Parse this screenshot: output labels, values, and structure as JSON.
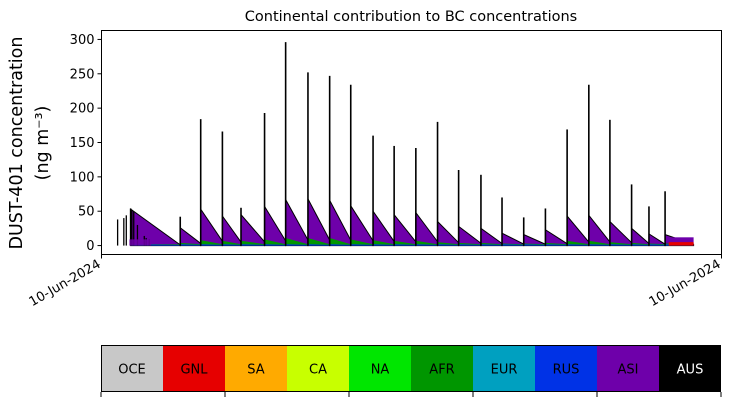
{
  "chart_data": {
    "type": "area",
    "title": "Continental contribution to BC concentrations",
    "ylabel_line1": "DUST-401 concentration",
    "ylabel_line2": "(ng m⁻³)",
    "ylim": [
      -13,
      313
    ],
    "yticks": [
      0,
      50,
      100,
      150,
      200,
      250,
      300
    ],
    "xtick_labels": [
      "10-Jun-2024",
      "10-Jun-2024"
    ],
    "grid": false,
    "stack_order": [
      "OCE",
      "GNL",
      "SA",
      "CA",
      "NA",
      "AFR",
      "EUR",
      "RUS",
      "ASI",
      "AUS"
    ],
    "categories": [
      "OCE",
      "GNL",
      "SA",
      "CA",
      "NA",
      "AFR",
      "EUR",
      "RUS",
      "ASI",
      "AUS"
    ],
    "colors": {
      "OCE": "#c8c8c8",
      "GNL": "#e60000",
      "SA": "#ffaa00",
      "CA": "#c8ff00",
      "NA": "#00e600",
      "AFR": "#009600",
      "EUR": "#00a0c0",
      "RUS": "#0032e6",
      "ASI": "#6e00aa",
      "AUS": "#000000"
    },
    "episodes": [
      {
        "x": 0.047,
        "start_total": 8,
        "peak_total": 53,
        "spike": 54,
        "asi": 6,
        "afr": 2
      },
      {
        "x": 0.127,
        "start_total": 26,
        "peak_total": 26,
        "spike": 42,
        "asi": 18,
        "afr": 4
      },
      {
        "x": 0.16,
        "start_total": 53,
        "peak_total": 53,
        "spike": 184,
        "asi": 40,
        "afr": 8
      },
      {
        "x": 0.195,
        "start_total": 43,
        "peak_total": 43,
        "spike": 166,
        "asi": 32,
        "afr": 7
      },
      {
        "x": 0.225,
        "start_total": 45,
        "peak_total": 45,
        "spike": 55,
        "asi": 33,
        "afr": 7
      },
      {
        "x": 0.263,
        "start_total": 57,
        "peak_total": 57,
        "spike": 193,
        "asi": 43,
        "afr": 9
      },
      {
        "x": 0.297,
        "start_total": 67,
        "peak_total": 67,
        "spike": 296,
        "asi": 51,
        "afr": 11
      },
      {
        "x": 0.333,
        "start_total": 68,
        "peak_total": 68,
        "spike": 252,
        "asi": 52,
        "afr": 11
      },
      {
        "x": 0.368,
        "start_total": 66,
        "peak_total": 66,
        "spike": 247,
        "asi": 50,
        "afr": 11
      },
      {
        "x": 0.402,
        "start_total": 58,
        "peak_total": 58,
        "spike": 234,
        "asi": 44,
        "afr": 9
      },
      {
        "x": 0.438,
        "start_total": 50,
        "peak_total": 50,
        "spike": 160,
        "asi": 38,
        "afr": 8
      },
      {
        "x": 0.472,
        "start_total": 45,
        "peak_total": 45,
        "spike": 145,
        "asi": 34,
        "afr": 7
      },
      {
        "x": 0.507,
        "start_total": 48,
        "peak_total": 48,
        "spike": 142,
        "asi": 36,
        "afr": 7
      },
      {
        "x": 0.542,
        "start_total": 35,
        "peak_total": 35,
        "spike": 180,
        "asi": 26,
        "afr": 5
      },
      {
        "x": 0.576,
        "start_total": 28,
        "peak_total": 28,
        "spike": 110,
        "asi": 21,
        "afr": 4
      },
      {
        "x": 0.612,
        "start_total": 25,
        "peak_total": 25,
        "spike": 103,
        "asi": 19,
        "afr": 4
      },
      {
        "x": 0.646,
        "start_total": 18,
        "peak_total": 18,
        "spike": 70,
        "asi": 13,
        "afr": 3
      },
      {
        "x": 0.681,
        "start_total": 16,
        "peak_total": 16,
        "spike": 41,
        "asi": 12,
        "afr": 3
      },
      {
        "x": 0.716,
        "start_total": 23,
        "peak_total": 23,
        "spike": 54,
        "asi": 17,
        "afr": 4
      },
      {
        "x": 0.751,
        "start_total": 43,
        "peak_total": 43,
        "spike": 169,
        "asi": 32,
        "afr": 7
      },
      {
        "x": 0.786,
        "start_total": 44,
        "peak_total": 44,
        "spike": 234,
        "asi": 33,
        "afr": 7
      },
      {
        "x": 0.82,
        "start_total": 35,
        "peak_total": 35,
        "spike": 183,
        "asi": 26,
        "afr": 5
      },
      {
        "x": 0.855,
        "start_total": 25,
        "peak_total": 25,
        "spike": 89,
        "asi": 19,
        "afr": 4
      },
      {
        "x": 0.883,
        "start_total": 17,
        "peak_total": 17,
        "spike": 57,
        "asi": 13,
        "afr": 3
      },
      {
        "x": 0.909,
        "start_total": 16,
        "peak_total": 16,
        "spike": 79,
        "asi": 12,
        "afr": 3
      }
    ]
  },
  "legend": {
    "items": [
      {
        "label": "OCE",
        "color": "#c8c8c8",
        "text_color": "#000000"
      },
      {
        "label": "GNL",
        "color": "#e60000",
        "text_color": "#000000"
      },
      {
        "label": "SA",
        "color": "#ffaa00",
        "text_color": "#000000"
      },
      {
        "label": "CA",
        "color": "#c8ff00",
        "text_color": "#000000"
      },
      {
        "label": "NA",
        "color": "#00e600",
        "text_color": "#000000"
      },
      {
        "label": "AFR",
        "color": "#009600",
        "text_color": "#000000"
      },
      {
        "label": "EUR",
        "color": "#00a0c0",
        "text_color": "#000000"
      },
      {
        "label": "RUS",
        "color": "#0032e6",
        "text_color": "#000000"
      },
      {
        "label": "ASI",
        "color": "#6e00aa",
        "text_color": "#000000"
      },
      {
        "label": "AUS",
        "color": "#000000",
        "text_color": "#ffffff"
      }
    ]
  }
}
